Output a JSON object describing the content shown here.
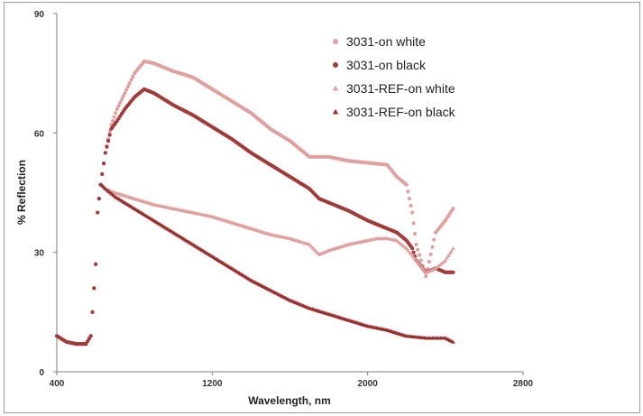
{
  "chart_data": {
    "type": "scatter",
    "title": "",
    "xlabel": "Wavelength, nm",
    "ylabel": "% Reflection",
    "xlim": [
      400,
      2800
    ],
    "ylim": [
      0,
      90
    ],
    "xticks": [
      "400",
      "1200",
      "2000",
      "2800"
    ],
    "yticks": [
      "0",
      "30",
      "60",
      "90"
    ],
    "legend": "top-right",
    "grid": false,
    "series": [
      {
        "name": "3031-on white",
        "marker": "circle",
        "color": "#e0a0a0",
        "x": [
          400,
          450,
          500,
          550,
          575,
          600,
          610,
          625,
          650,
          680,
          710,
          750,
          800,
          850,
          900,
          950,
          1000,
          1100,
          1200,
          1300,
          1400,
          1500,
          1600,
          1700,
          1750,
          1800,
          1900,
          2000,
          2100,
          2150,
          2200,
          2230,
          2250,
          2300,
          2350,
          2400,
          2440
        ],
        "y": [
          9,
          7.5,
          7,
          7,
          9,
          27,
          40,
          47,
          55,
          62,
          66,
          70,
          75,
          78,
          77.5,
          76.5,
          75.5,
          74,
          71,
          68,
          65,
          61,
          58,
          54,
          54,
          54,
          53,
          52.5,
          52,
          49,
          47,
          40,
          32,
          24,
          35,
          38,
          41
        ]
      },
      {
        "name": "3031-on black",
        "marker": "circle",
        "color": "#a33a3a",
        "x": [
          400,
          450,
          500,
          550,
          575,
          600,
          610,
          625,
          650,
          680,
          710,
          750,
          800,
          850,
          900,
          1000,
          1100,
          1200,
          1300,
          1400,
          1500,
          1600,
          1700,
          1750,
          1800,
          1900,
          2000,
          2100,
          2150,
          2200,
          2230,
          2250,
          2300,
          2350,
          2400,
          2440
        ],
        "y": [
          9,
          7.5,
          7,
          7,
          9,
          27,
          40,
          47,
          55,
          61,
          63,
          66,
          69,
          71,
          70,
          67,
          64.5,
          61.5,
          58.5,
          55,
          52,
          49,
          46,
          43.5,
          42.5,
          40.5,
          38,
          36,
          35,
          33,
          31,
          28,
          25,
          26,
          25,
          25
        ]
      },
      {
        "name": "3031-REF-on white",
        "marker": "triangle",
        "color": "#e0a0a0",
        "x": [
          630,
          650,
          700,
          800,
          900,
          1000,
          1100,
          1200,
          1300,
          1400,
          1500,
          1600,
          1700,
          1750,
          1800,
          1900,
          2000,
          2050,
          2100,
          2150,
          2200,
          2250,
          2300,
          2350,
          2400,
          2440
        ],
        "y": [
          47,
          46,
          45,
          43.5,
          42,
          41,
          40,
          39,
          37.5,
          36,
          34.5,
          33.5,
          32,
          29.5,
          30.5,
          32,
          33,
          33.5,
          33.5,
          33,
          31,
          28,
          25,
          26,
          28,
          31
        ]
      },
      {
        "name": "3031-REF-on black",
        "marker": "triangle",
        "color": "#9a2f2f",
        "x": [
          630,
          650,
          700,
          800,
          900,
          1000,
          1100,
          1200,
          1300,
          1400,
          1500,
          1600,
          1700,
          1800,
          1900,
          2000,
          2100,
          2200,
          2300,
          2350,
          2400,
          2440
        ],
        "y": [
          47,
          46,
          44,
          41,
          38,
          35,
          32,
          29,
          26,
          23,
          20.5,
          18,
          16,
          14.5,
          13,
          11.5,
          10.5,
          9,
          8.5,
          8.5,
          8.5,
          7.5
        ]
      }
    ]
  }
}
